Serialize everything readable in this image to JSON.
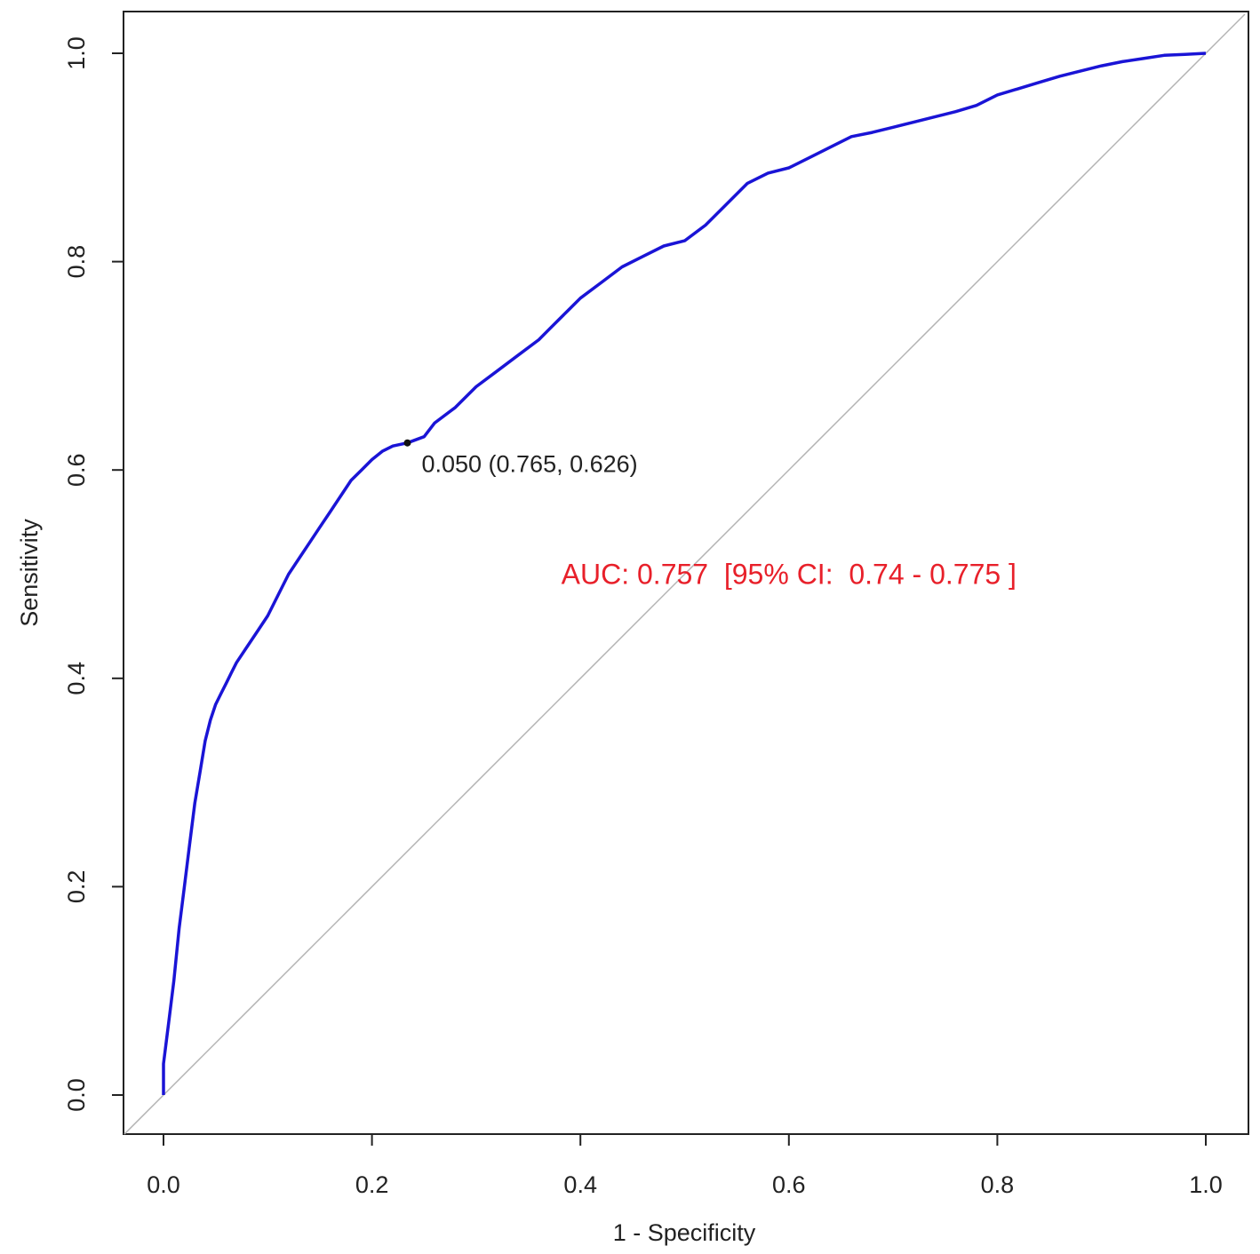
{
  "chart_data": {
    "type": "line",
    "title": "",
    "xlabel": "1 - Specificity",
    "ylabel": "Sensitivity",
    "xlim": [
      0,
      1
    ],
    "ylim": [
      0,
      1
    ],
    "x_ticks": [
      "0.0",
      "0.2",
      "0.4",
      "0.6",
      "0.8",
      "1.0"
    ],
    "y_ticks": [
      "0.0",
      "0.2",
      "0.4",
      "0.6",
      "0.8",
      "1.0"
    ],
    "grid": false,
    "legend": "none",
    "series": [
      {
        "color": "#1a14d6",
        "x": [
          0.0,
          0.0,
          0.005,
          0.01,
          0.015,
          0.02,
          0.025,
          0.03,
          0.035,
          0.04,
          0.045,
          0.05,
          0.055,
          0.06,
          0.065,
          0.07,
          0.08,
          0.09,
          0.1,
          0.11,
          0.12,
          0.13,
          0.14,
          0.15,
          0.16,
          0.17,
          0.18,
          0.19,
          0.2,
          0.21,
          0.22,
          0.234,
          0.25,
          0.26,
          0.28,
          0.3,
          0.32,
          0.34,
          0.36,
          0.37,
          0.38,
          0.39,
          0.4,
          0.42,
          0.44,
          0.46,
          0.48,
          0.5,
          0.52,
          0.54,
          0.56,
          0.58,
          0.6,
          0.62,
          0.64,
          0.66,
          0.68,
          0.7,
          0.72,
          0.74,
          0.76,
          0.78,
          0.8,
          0.82,
          0.84,
          0.86,
          0.88,
          0.9,
          0.92,
          0.94,
          0.96,
          0.98,
          1.0
        ],
        "y": [
          0.0,
          0.03,
          0.07,
          0.11,
          0.16,
          0.2,
          0.24,
          0.28,
          0.31,
          0.34,
          0.36,
          0.375,
          0.385,
          0.395,
          0.405,
          0.415,
          0.43,
          0.445,
          0.46,
          0.48,
          0.5,
          0.515,
          0.53,
          0.545,
          0.56,
          0.575,
          0.59,
          0.6,
          0.61,
          0.618,
          0.623,
          0.626,
          0.632,
          0.645,
          0.66,
          0.68,
          0.695,
          0.71,
          0.725,
          0.735,
          0.745,
          0.755,
          0.765,
          0.78,
          0.795,
          0.805,
          0.815,
          0.82,
          0.835,
          0.855,
          0.875,
          0.885,
          0.89,
          0.9,
          0.91,
          0.92,
          0.924,
          0.929,
          0.934,
          0.939,
          0.944,
          0.95,
          0.96,
          0.966,
          0.972,
          0.978,
          0.983,
          0.988,
          0.992,
          0.995,
          0.998,
          0.999,
          1.0
        ]
      }
    ],
    "reference_line": {
      "x": [
        0,
        1
      ],
      "y": [
        0,
        1
      ],
      "color": "#b3b3b3"
    },
    "highlight_point": {
      "x": 0.234,
      "y": 0.626,
      "label": "0.050 (0.765, 0.626)"
    },
    "annotations": [
      {
        "text": "AUC: 0.757  [95% CI:  0.74 - 0.775 ]",
        "x": 0.6,
        "y": 0.5,
        "color": "#e8202a"
      }
    ]
  }
}
